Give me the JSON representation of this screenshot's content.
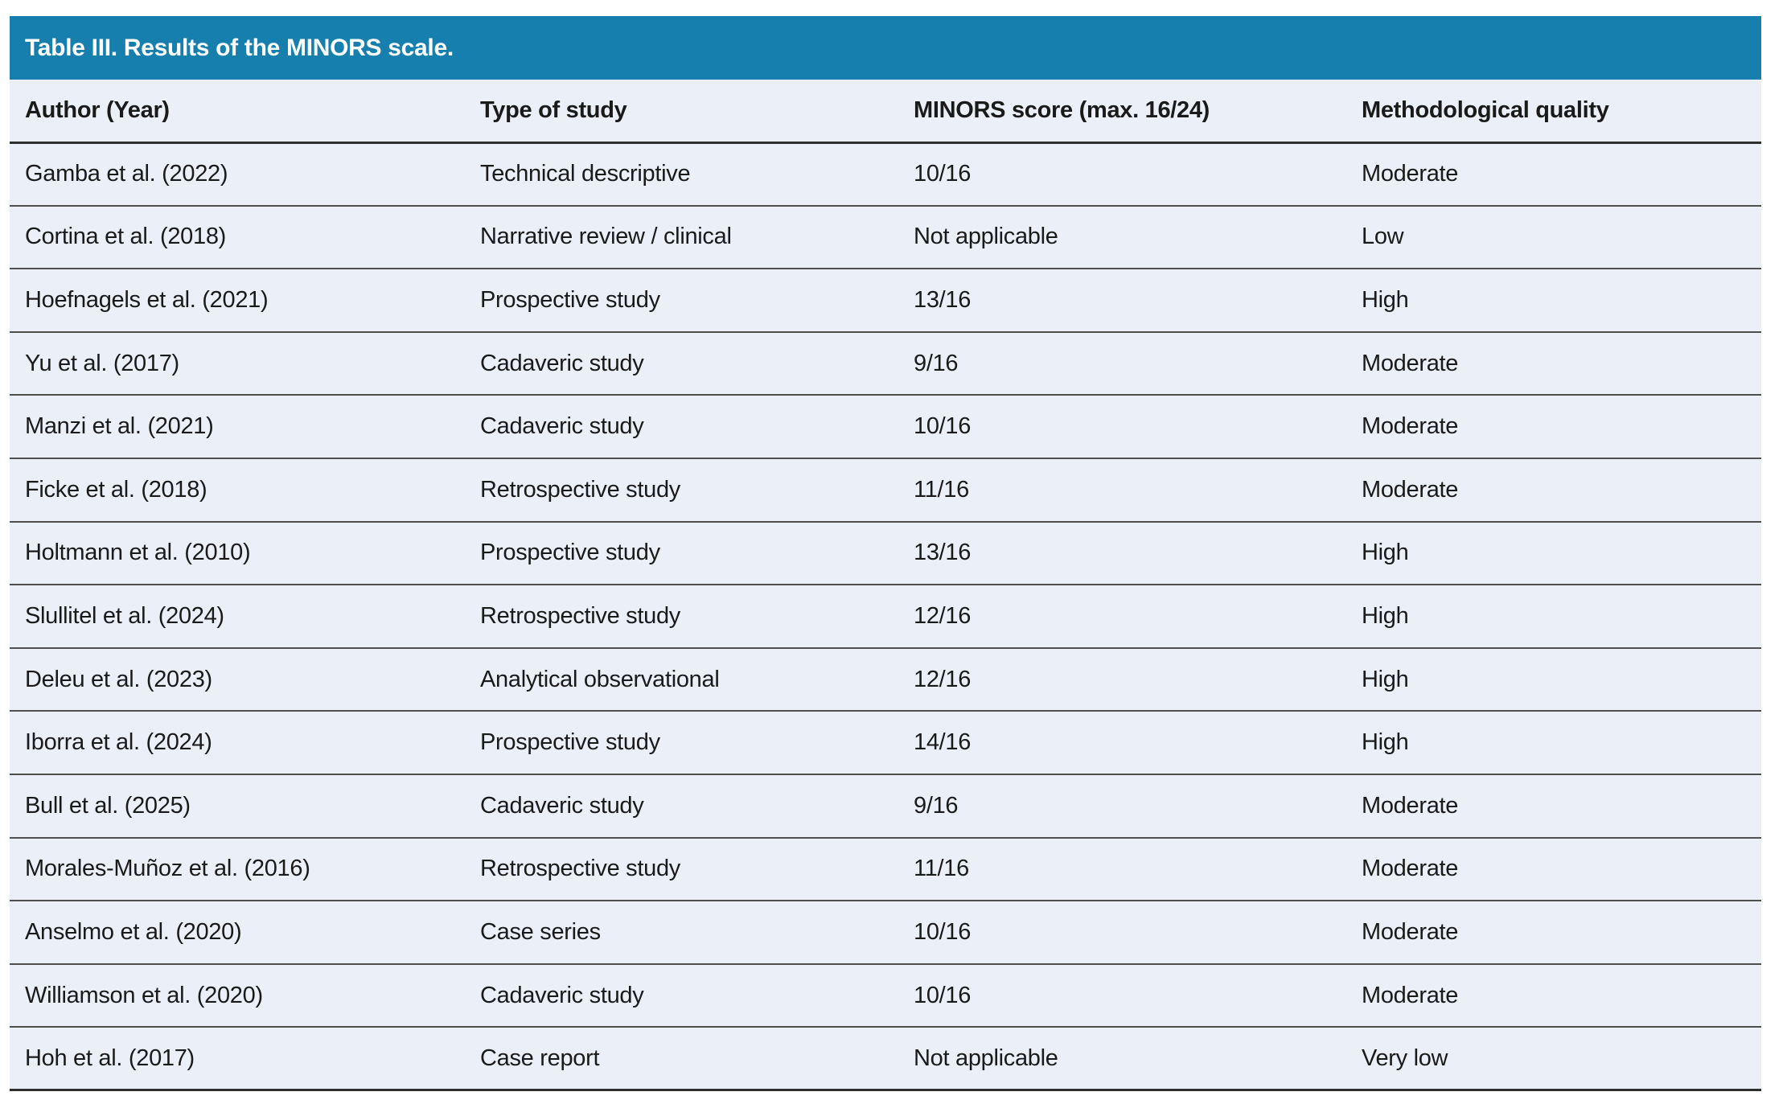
{
  "table": {
    "title": "Table III. Results of the MINORS scale.",
    "columns": [
      "Author (Year)",
      "Type of study",
      "MINORS score (max. 16/24)",
      "Methodological quality"
    ],
    "rows": [
      [
        "Gamba et al. (2022)",
        "Technical descriptive",
        "10/16",
        "Moderate"
      ],
      [
        "Cortina et al. (2018)",
        "Narrative review / clinical",
        "Not applicable",
        "Low"
      ],
      [
        "Hoefnagels et al. (2021)",
        "Prospective study",
        "13/16",
        "High"
      ],
      [
        "Yu et al. (2017)",
        "Cadaveric study",
        "9/16",
        "Moderate"
      ],
      [
        "Manzi et al. (2021)",
        "Cadaveric study",
        "10/16",
        "Moderate"
      ],
      [
        "Ficke et al. (2018)",
        "Retrospective study",
        "11/16",
        "Moderate"
      ],
      [
        "Holtmann et al. (2010)",
        "Prospective study",
        "13/16",
        "High"
      ],
      [
        "Slullitel et al. (2024)",
        "Retrospective study",
        "12/16",
        "High"
      ],
      [
        "Deleu et al. (2023)",
        "Analytical observational",
        "12/16",
        "High"
      ],
      [
        "Iborra et al. (2024)",
        "Prospective study",
        "14/16",
        "High"
      ],
      [
        "Bull et al. (2025)",
        "Cadaveric study",
        "9/16",
        "Moderate"
      ],
      [
        "Morales-Muñoz et al. (2016)",
        "Retrospective study",
        "11/16",
        "Moderate"
      ],
      [
        "Anselmo et al. (2020)",
        "Case series",
        "10/16",
        "Moderate"
      ],
      [
        "Williamson et al. (2020)",
        "Cadaveric study",
        "10/16",
        "Moderate"
      ],
      [
        "Hoh et al. (2017)",
        "Case report",
        "Not applicable",
        "Very low"
      ]
    ],
    "colors": {
      "header_bar": "#177FAE",
      "row_bg": "#EBEFF8",
      "divider": "#4E4E4E",
      "strong_line": "#2E2E2E",
      "header_text": "#FFFFFF",
      "body_text": "#1A1A1A"
    }
  }
}
